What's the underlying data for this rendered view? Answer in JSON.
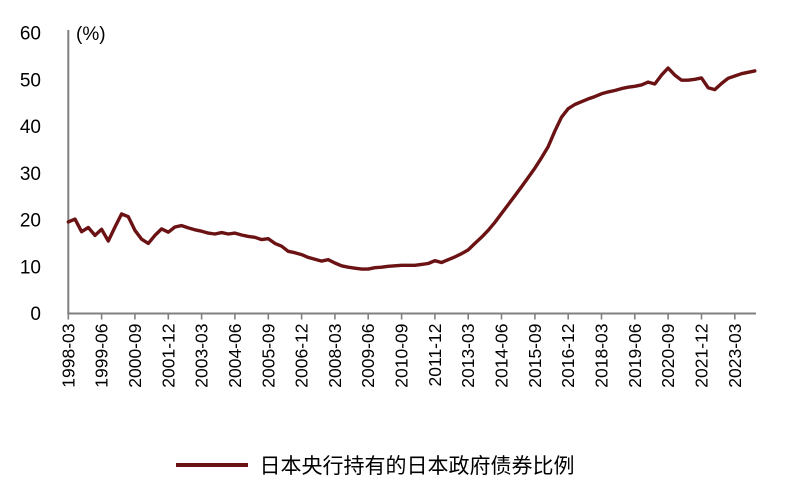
{
  "chart_data": {
    "type": "line",
    "title": "",
    "unit_label": "(%)",
    "series_name": "日本央行持有的日本政府债券比例",
    "legend_position": "bottom",
    "grid": false,
    "ylim": [
      0,
      60
    ],
    "yticks": [
      0,
      10,
      20,
      30,
      40,
      50,
      60
    ],
    "x_tick_labels": [
      "1998-03",
      "1999-06",
      "2000-09",
      "2001-12",
      "2003-03",
      "2004-06",
      "2005-09",
      "2006-12",
      "2008-03",
      "2009-06",
      "2010-09",
      "2011-12",
      "2013-03",
      "2014-06",
      "2015-09",
      "2016-12",
      "2018-03",
      "2019-06",
      "2020-09",
      "2021-12",
      "2023-03"
    ],
    "x": [
      "1998-03",
      "1998-06",
      "1998-09",
      "1998-12",
      "1999-03",
      "1999-06",
      "1999-09",
      "1999-12",
      "2000-03",
      "2000-06",
      "2000-09",
      "2000-12",
      "2001-03",
      "2001-06",
      "2001-09",
      "2001-12",
      "2002-03",
      "2002-06",
      "2002-09",
      "2002-12",
      "2003-03",
      "2003-06",
      "2003-09",
      "2003-12",
      "2004-03",
      "2004-06",
      "2004-09",
      "2004-12",
      "2005-03",
      "2005-06",
      "2005-09",
      "2005-12",
      "2006-03",
      "2006-06",
      "2006-09",
      "2006-12",
      "2007-03",
      "2007-06",
      "2007-09",
      "2007-12",
      "2008-03",
      "2008-06",
      "2008-09",
      "2008-12",
      "2009-03",
      "2009-06",
      "2009-09",
      "2009-12",
      "2010-03",
      "2010-06",
      "2010-09",
      "2010-12",
      "2011-03",
      "2011-06",
      "2011-09",
      "2011-12",
      "2012-03",
      "2012-06",
      "2012-09",
      "2012-12",
      "2013-03",
      "2013-06",
      "2013-09",
      "2013-12",
      "2014-03",
      "2014-06",
      "2014-09",
      "2014-12",
      "2015-03",
      "2015-06",
      "2015-09",
      "2015-12",
      "2016-03",
      "2016-06",
      "2016-09",
      "2016-12",
      "2017-03",
      "2017-06",
      "2017-09",
      "2017-12",
      "2018-03",
      "2018-06",
      "2018-09",
      "2018-12",
      "2019-03",
      "2019-06",
      "2019-09",
      "2019-12",
      "2020-03",
      "2020-06",
      "2020-09",
      "2020-12",
      "2021-03",
      "2021-06",
      "2021-09",
      "2021-12",
      "2022-03",
      "2022-06",
      "2022-09",
      "2022-12",
      "2023-03",
      "2023-06",
      "2023-09",
      "2023-12"
    ],
    "values": [
      19.6,
      20.2,
      17.5,
      18.4,
      16.7,
      18.0,
      15.5,
      18.5,
      21.3,
      20.7,
      17.8,
      15.9,
      15.0,
      16.7,
      18.1,
      17.4,
      18.5,
      18.8,
      18.3,
      17.9,
      17.6,
      17.2,
      17.0,
      17.3,
      17.0,
      17.2,
      16.8,
      16.5,
      16.3,
      15.8,
      16.0,
      15.0,
      14.4,
      13.3,
      13.0,
      12.6,
      12.0,
      11.6,
      11.2,
      11.5,
      10.8,
      10.2,
      9.9,
      9.7,
      9.5,
      9.5,
      9.8,
      9.9,
      10.1,
      10.2,
      10.3,
      10.3,
      10.3,
      10.5,
      10.7,
      11.3,
      10.9,
      11.5,
      12.1,
      12.8,
      13.6,
      15.0,
      16.3,
      17.8,
      19.5,
      21.4,
      23.3,
      25.2,
      27.1,
      29.1,
      31.1,
      33.3,
      35.7,
      39.0,
      42.0,
      43.8,
      44.7,
      45.3,
      45.9,
      46.4,
      47.0,
      47.4,
      47.7,
      48.1,
      48.4,
      48.6,
      48.9,
      49.5,
      49.1,
      51.0,
      52.5,
      51.0,
      49.9,
      49.9,
      50.1,
      50.4,
      48.3,
      47.9,
      49.2,
      50.3,
      50.8,
      51.3,
      51.6,
      51.9
    ],
    "colors": {
      "line": "#6b1214",
      "axis": "#808080",
      "tick_label": "#000000",
      "background": "#ffffff"
    }
  }
}
